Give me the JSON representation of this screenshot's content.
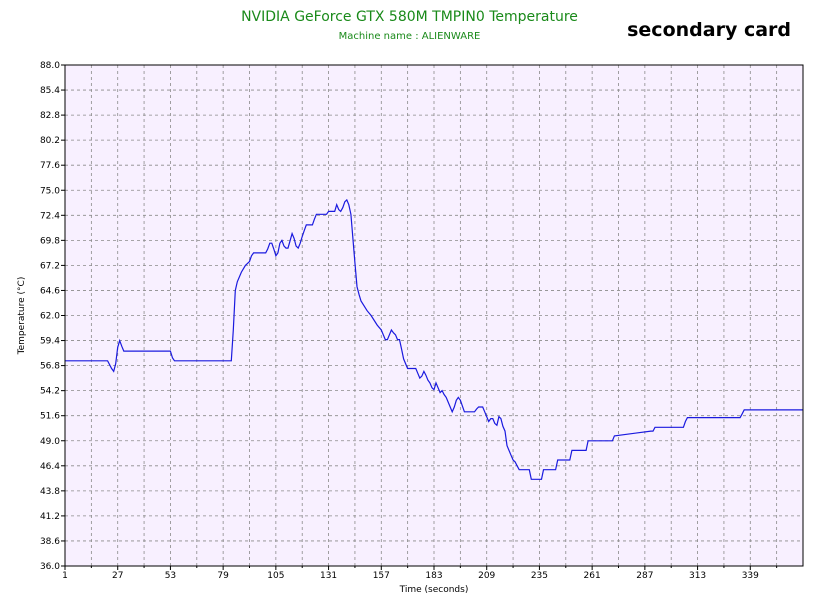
{
  "chart_data": {
    "type": "line",
    "title": "NVIDIA GeForce GTX 580M TMPIN0 Temperature",
    "subtitle": "Machine name : ALIENWARE",
    "badge": "secondary card",
    "xlabel": "Time (seconds)",
    "ylabel": "Temperature (°C)",
    "xlim": [
      1,
      365
    ],
    "ylim": [
      36.0,
      88.0
    ],
    "x_ticks": [
      "1",
      "27",
      "53",
      "79",
      "105",
      "131",
      "157",
      "183",
      "209",
      "235",
      "261",
      "287",
      "313",
      "339"
    ],
    "y_ticks": [
      "36.0",
      "38.6",
      "41.2",
      "43.8",
      "46.4",
      "49.0",
      "51.6",
      "54.2",
      "56.8",
      "59.4",
      "62.0",
      "64.6",
      "67.2",
      "69.8",
      "72.4",
      "75.0",
      "77.6",
      "80.2",
      "82.8",
      "85.4",
      "88.0"
    ],
    "grid": true,
    "colors": {
      "line": "#1a1adf",
      "plot_bg": "#f8f0ff",
      "grid": "#8a8a8a",
      "title": "#1a8a1a"
    },
    "series": [
      {
        "x": [
          1,
          22,
          24,
          25,
          26,
          27,
          28,
          29,
          30,
          53,
          54,
          55,
          83,
          84,
          85,
          86,
          88,
          90,
          92,
          93,
          94,
          100,
          101,
          102,
          103,
          104,
          105,
          106,
          107,
          108,
          109,
          110,
          111,
          113,
          114,
          115,
          116,
          117,
          118,
          119,
          120,
          123,
          124,
          125,
          126,
          130,
          131,
          134,
          135,
          136,
          137,
          138,
          139,
          140,
          141,
          142,
          143,
          144,
          145,
          146,
          147,
          150,
          152,
          155,
          157,
          158,
          159,
          160,
          161,
          162,
          163,
          164,
          165,
          166,
          167,
          168,
          170,
          171,
          172,
          173,
          174,
          175,
          176,
          177,
          178,
          179,
          180,
          181,
          182,
          183,
          184,
          185,
          186,
          187,
          188,
          189,
          191,
          192,
          193,
          194,
          195,
          196,
          197,
          198,
          203,
          204,
          205,
          206,
          207,
          208,
          209,
          210,
          211,
          212,
          213,
          214,
          215,
          216,
          217,
          218,
          219,
          220,
          221,
          222,
          223,
          224,
          225,
          230,
          231,
          236,
          237,
          238,
          243,
          244,
          250,
          251,
          252,
          258,
          259,
          270,
          271,
          272,
          290,
          291,
          292,
          306,
          307,
          308,
          334,
          335,
          336,
          365
        ],
        "values": [
          57.3,
          57.3,
          56.5,
          56.2,
          57.0,
          58.7,
          59.4,
          58.8,
          58.3,
          58.3,
          57.6,
          57.3,
          57.3,
          60.5,
          64.6,
          65.5,
          66.5,
          67.2,
          67.6,
          68.2,
          68.5,
          68.5,
          68.9,
          69.5,
          69.5,
          68.9,
          68.2,
          68.5,
          69.5,
          69.8,
          69.2,
          69.0,
          69.0,
          70.5,
          70.0,
          69.2,
          69.0,
          69.5,
          70.2,
          70.8,
          71.4,
          71.4,
          72.0,
          72.5,
          72.5,
          72.5,
          72.8,
          72.8,
          73.5,
          73.0,
          72.8,
          73.2,
          73.8,
          74.0,
          73.5,
          72.5,
          70.0,
          67.5,
          65.0,
          64.2,
          63.5,
          62.5,
          62.0,
          61.0,
          60.5,
          60.0,
          59.5,
          59.5,
          60.0,
          60.5,
          60.2,
          60.0,
          59.5,
          59.5,
          58.5,
          57.5,
          56.5,
          56.5,
          56.5,
          56.5,
          56.5,
          56.0,
          55.5,
          55.7,
          56.2,
          55.8,
          55.3,
          55.0,
          54.5,
          54.3,
          55.0,
          54.5,
          54.0,
          54.2,
          53.8,
          53.5,
          52.5,
          52.0,
          52.5,
          53.2,
          53.5,
          53.2,
          52.6,
          52.0,
          52.0,
          52.3,
          52.5,
          52.5,
          52.5,
          52.0,
          51.5,
          51.0,
          51.3,
          51.3,
          50.8,
          50.6,
          51.5,
          51.3,
          50.5,
          50.0,
          48.5,
          48.0,
          47.5,
          47.0,
          46.8,
          46.4,
          46.0,
          46.0,
          45.0,
          45.0,
          46.0,
          46.0,
          46.0,
          47.0,
          47.0,
          48.0,
          48.0,
          48.0,
          49.0,
          49.0,
          49.0,
          49.5,
          50.0,
          50.0,
          50.4,
          50.4,
          51.0,
          51.4,
          51.4,
          51.8,
          52.2,
          52.2
        ]
      }
    ]
  }
}
